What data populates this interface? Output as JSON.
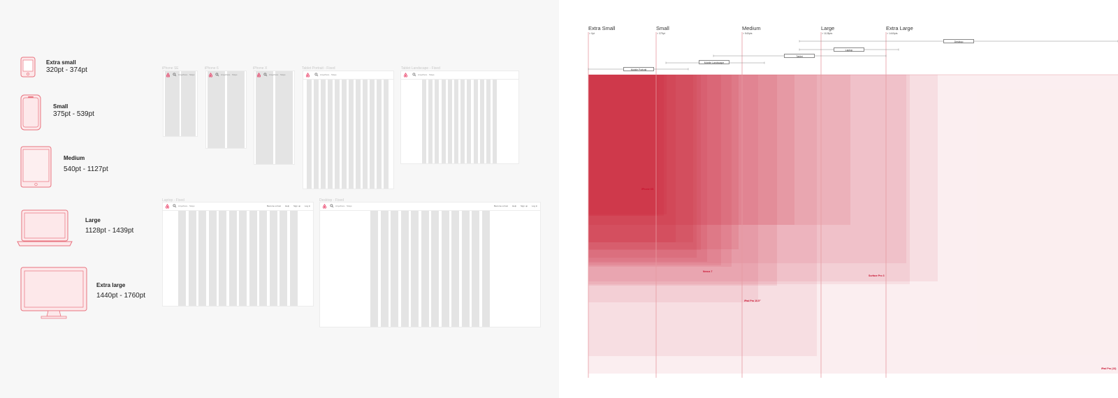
{
  "breakpoint_list": [
    {
      "name": "Extra small",
      "range": "320pt - 374pt",
      "icon": "phone-small-icon"
    },
    {
      "name": "Small",
      "range": "375pt - 539pt",
      "icon": "phone-icon"
    },
    {
      "name": "Medium",
      "range": "540pt - 1127pt",
      "icon": "tablet-icon"
    },
    {
      "name": "Large",
      "range": "1128pt - 1439pt",
      "icon": "laptop-icon"
    },
    {
      "name": "Extra large",
      "range": "1440pt - 1760pt",
      "icon": "desktop-icon"
    }
  ],
  "frames": [
    {
      "label": "iPhone SE"
    },
    {
      "label": "iPhone 6"
    },
    {
      "label": "iPhone X"
    },
    {
      "label": "Tablet Portrait - Fixed"
    },
    {
      "label": "Tablet Landscape - Fixed"
    },
    {
      "label": "Laptop - Fixed"
    },
    {
      "label": "Desktop - Fixed"
    }
  ],
  "frame_ui": {
    "search_text": "Anywhere · Stays",
    "nav_items": [
      "Become a host",
      "Help",
      "Sign up",
      "Log in"
    ]
  },
  "breakpoint_chart": {
    "headers": [
      {
        "name": "Extra Small",
        "min": "> 0pt"
      },
      {
        "name": "Small",
        "min": "> 375pt"
      },
      {
        "name": "Medium",
        "min": "> 540pts"
      },
      {
        "name": "Large",
        "min": "> 1128pts"
      },
      {
        "name": "Extra Large",
        "min": "> 1440pts"
      }
    ],
    "ranges": [
      "Desktop",
      "Laptop",
      "Tablet",
      "Mobile Landscape",
      "Mobile Portrait"
    ],
    "devices": [
      "iPhone XS",
      "Nexus 7",
      "Surface Pro 3",
      "iPad Pro 10.5\"",
      "iPad Pro (13)"
    ]
  },
  "colors": {
    "accent": "#e61e4d",
    "device_fill": "#d0263b",
    "line": "#e79aa1",
    "column": "#e4e4e4"
  }
}
